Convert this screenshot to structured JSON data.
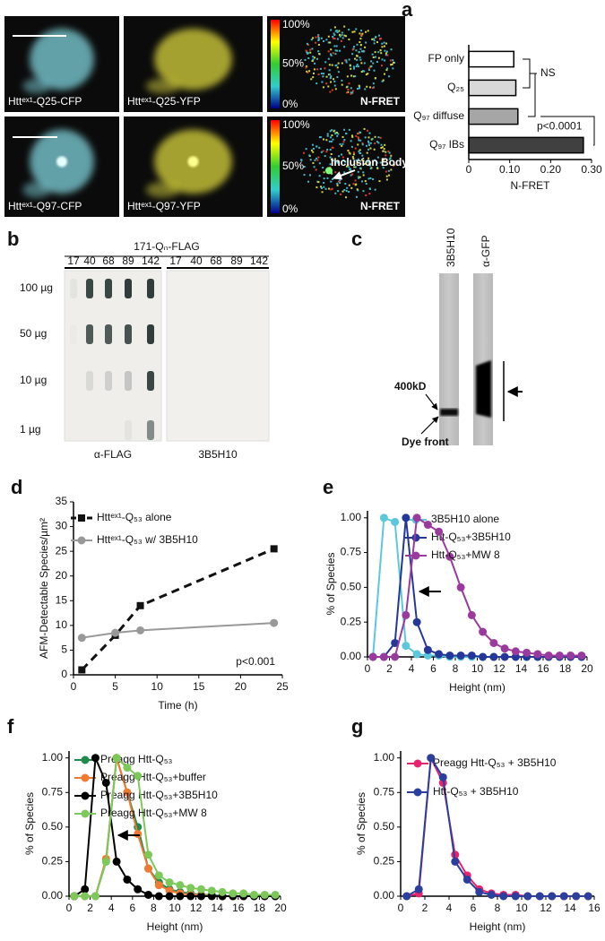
{
  "panels": {
    "a": {
      "letter": "a",
      "captions": [
        "Httᵉˣ¹-Q25-CFP",
        "Httᵉˣ¹-Q25-YFP",
        "N-FRET",
        "Httᵉˣ¹-Q97-CFP",
        "Httᵉˣ¹-Q97-YFP",
        "N-FRET"
      ],
      "scale_labels": [
        "100%",
        "50%",
        "0%"
      ],
      "callout": "Inclusion Body"
    },
    "b": {
      "letter": "b",
      "title": "171-Qₙ-FLAG",
      "columns": [
        17,
        40,
        68,
        89,
        142
      ],
      "rows": [
        "100 µg",
        "50 µg",
        "10 µg",
        "1 µg"
      ],
      "blots": [
        "α-FLAG",
        "3B5H10"
      ]
    },
    "c": {
      "letter": "c",
      "lanes": [
        "3B5H10",
        "α-GFP"
      ],
      "marker": "400kD",
      "front": "Dye front"
    }
  },
  "chart_data": [
    {
      "type": "hbar",
      "categories": [
        "FP only",
        "Q₂₅",
        "Q₉₇ diffuse",
        "Q₉₇ IBs"
      ],
      "values": [
        0.11,
        0.115,
        0.12,
        0.28
      ],
      "colors": [
        "#ffffff",
        "#d9d9d9",
        "#a6a6a6",
        "#404040"
      ],
      "xlabel": "N-FRET",
      "xlim": [
        0,
        0.3
      ],
      "xticks": [
        0,
        {
          "value": 0.1,
          "label": "0.10"
        },
        {
          "value": 0.2,
          "label": "0.20"
        },
        {
          "value": 0.3,
          "label": "0.30"
        }
      ],
      "annotations": [
        "NS",
        "p<0.0001"
      ]
    },
    {
      "type": "line",
      "panel": "d",
      "xlabel": "Time (h)",
      "ylabel": "AFM-Detectable Species/µm²",
      "x": [
        1,
        5,
        8,
        24
      ],
      "series": [
        {
          "name": "Httᵉˣ¹-Q₅₃ alone",
          "color": "#111111",
          "marker": "square",
          "dashed": true,
          "values": [
            1,
            8,
            14,
            25.5
          ]
        },
        {
          "name": "Httᵉˣ¹-Q₅₃ w/ 3B5H10",
          "color": "#999999",
          "marker": "circle",
          "dashed": false,
          "values": [
            7.5,
            8.5,
            9,
            10.5
          ]
        }
      ],
      "xlim": [
        0,
        25
      ],
      "xticks": [
        0,
        5,
        10,
        15,
        20,
        25
      ],
      "ylim": [
        0,
        35
      ],
      "yticks": [
        0,
        5,
        10,
        15,
        20,
        25,
        30,
        35
      ],
      "annotations": [
        "p<0.001"
      ]
    },
    {
      "type": "line",
      "panel": "e",
      "xlabel": "Height (nm)",
      "ylabel": "% of Species",
      "x": [
        0.5,
        1.5,
        2.5,
        3.5,
        4.5,
        5.5,
        6.5,
        7.5,
        8.5,
        9.5,
        10.5,
        11.5,
        12.5,
        13.5,
        14.5,
        15.5,
        16.5,
        17.5,
        18.5,
        19.5
      ],
      "series": [
        {
          "name": "3B5H10 alone",
          "color": "#5bc8de",
          "marker": "circle",
          "values": [
            0,
            1.0,
            0.97,
            0.08,
            0.02,
            0.01,
            0.01,
            0,
            0,
            0,
            0,
            0,
            0,
            0,
            0,
            0,
            0,
            0,
            0,
            0
          ]
        },
        {
          "name": "Htt-Q₅₃+3B5H10",
          "color": "#25389a",
          "marker": "circle",
          "values": [
            0,
            0,
            0.1,
            1.0,
            0.25,
            0.05,
            0.02,
            0.01,
            0.01,
            0.01,
            0,
            0,
            0,
            0,
            0,
            0,
            0,
            0,
            0,
            0
          ]
        },
        {
          "name": "Htt-Q₅₃+MW 8",
          "color": "#9b3a9e",
          "marker": "circle",
          "values": [
            0,
            0,
            0,
            0.3,
            1.0,
            0.95,
            0.9,
            0.72,
            0.5,
            0.3,
            0.18,
            0.1,
            0.06,
            0.04,
            0.03,
            0.02,
            0.01,
            0.01,
            0.01,
            0.01
          ]
        }
      ],
      "xlim": [
        0,
        20
      ],
      "xticks": [
        0,
        2,
        4,
        6,
        8,
        10,
        12,
        14,
        16,
        18,
        20
      ],
      "ylim": [
        0,
        1.05
      ],
      "yticks": [
        {
          "value": 0,
          "label": "0.00"
        },
        {
          "value": 0.25,
          "label": "0.25"
        },
        {
          "value": 0.5,
          "label": "0.50"
        },
        {
          "value": 0.75,
          "label": "0.75"
        },
        {
          "value": 1,
          "label": "1.00"
        }
      ]
    },
    {
      "type": "line",
      "panel": "f",
      "xlabel": "Height (nm)",
      "ylabel": "% of Species",
      "x": [
        0.5,
        1.5,
        2.5,
        3.5,
        4.5,
        5.5,
        6.5,
        7.5,
        8.5,
        9.5,
        10.5,
        11.5,
        12.5,
        13.5,
        14.5,
        15.5,
        16.5,
        17.5,
        18.5,
        19.5
      ],
      "series": [
        {
          "name": "Preagg Htt-Q₅₃",
          "color": "#1f8a4c",
          "marker": "circle",
          "values": [
            0,
            0,
            0,
            0.25,
            1.0,
            0.75,
            0.5,
            0.2,
            0.1,
            0.05,
            0.03,
            0.02,
            0.01,
            0.01,
            0,
            0,
            0,
            0,
            0,
            0
          ]
        },
        {
          "name": "Preagg Htt-Q₅₃+buffer",
          "color": "#f07a32",
          "marker": "circle",
          "values": [
            0,
            0,
            0,
            0.27,
            1.0,
            0.75,
            0.45,
            0.2,
            0.08,
            0.04,
            0.02,
            0.01,
            0.01,
            0,
            0,
            0,
            0,
            0,
            0,
            0
          ]
        },
        {
          "name": "Preagg Htt-Q₅₃+3B5H10",
          "color": "#000000",
          "marker": "circle",
          "values": [
            0,
            0.05,
            1.0,
            0.82,
            0.25,
            0.12,
            0.05,
            0.01,
            0,
            0,
            0,
            0,
            0,
            0,
            0,
            0,
            0,
            0,
            0,
            0
          ]
        },
        {
          "name": "Preagg Htt-Q₅₃+MW 8",
          "color": "#7cc95a",
          "marker": "circle",
          "values": [
            0,
            0,
            0,
            0.25,
            1.0,
            0.93,
            0.87,
            0.3,
            0.15,
            0.1,
            0.08,
            0.06,
            0.05,
            0.04,
            0.03,
            0.02,
            0.02,
            0.01,
            0.01,
            0.01
          ]
        }
      ],
      "xlim": [
        0,
        20
      ],
      "xticks": [
        0,
        2,
        4,
        6,
        8,
        10,
        12,
        14,
        16,
        18,
        20
      ],
      "ylim": [
        0,
        1.05
      ],
      "yticks": [
        {
          "value": 0,
          "label": "0.00"
        },
        {
          "value": 0.25,
          "label": "0.25"
        },
        {
          "value": 0.5,
          "label": "0.50"
        },
        {
          "value": 0.75,
          "label": "0.75"
        },
        {
          "value": 1,
          "label": "1.00"
        }
      ]
    },
    {
      "type": "line",
      "panel": "g",
      "xlabel": "Height (nm)",
      "ylabel": "% of Species",
      "x": [
        0.5,
        1.5,
        2.5,
        3.5,
        4.5,
        5.5,
        6.5,
        7.5,
        8.5,
        9.5,
        10.5,
        11.5,
        12.5,
        13.5,
        14.5,
        15.5
      ],
      "series": [
        {
          "name": "Preagg Htt-Q₅₃ + 3B5H10",
          "color": "#e8246e",
          "marker": "circle",
          "values": [
            0,
            0.02,
            1.0,
            0.82,
            0.3,
            0.15,
            0.05,
            0.02,
            0.01,
            0.01,
            0,
            0,
            0,
            0,
            0,
            0
          ]
        },
        {
          "name": "Htt-Q₅₃ + 3B5H10",
          "color": "#2b3f9e",
          "marker": "circle",
          "values": [
            0,
            0.05,
            1.0,
            0.86,
            0.25,
            0.12,
            0.03,
            0.01,
            0,
            0,
            0,
            0,
            0,
            0,
            0,
            0
          ]
        }
      ],
      "xlim": [
        0,
        16
      ],
      "xticks": [
        0,
        2,
        4,
        6,
        8,
        10,
        12,
        14,
        16
      ],
      "ylim": [
        0,
        1.05
      ],
      "yticks": [
        {
          "value": 0,
          "label": "0.00"
        },
        {
          "value": 0.25,
          "label": "0.25"
        },
        {
          "value": 0.5,
          "label": "0.50"
        },
        {
          "value": 0.75,
          "label": "0.75"
        },
        {
          "value": 1,
          "label": "1.00"
        }
      ]
    }
  ]
}
